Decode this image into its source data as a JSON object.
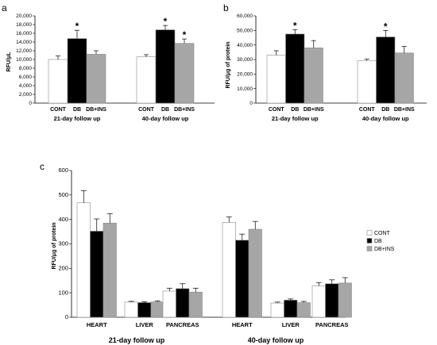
{
  "colors": {
    "CONT": "#ffffff",
    "DB": "#000000",
    "DB+INS": "#a6a6a6",
    "axis": "#000000",
    "errorbar": "#000000"
  },
  "chart_data": [
    {
      "panel": "a",
      "type": "bar",
      "ylabel": "RFU/μL",
      "ylim": [
        0,
        20000
      ],
      "yticks": [
        "0",
        "2,000",
        "4,000",
        "6,000",
        "8,000",
        "10,000",
        "12,000",
        "14,000",
        "16,000",
        "18,000",
        "20,000"
      ],
      "ytick_values": [
        0,
        2000,
        4000,
        6000,
        8000,
        10000,
        12000,
        14000,
        16000,
        18000,
        20000
      ],
      "groups": [
        {
          "label": "21-day follow up",
          "categories": [
            "CONT",
            "DB",
            "DB+INS"
          ],
          "values": [
            10000,
            14800,
            11200
          ],
          "errors": [
            800,
            1900,
            800
          ],
          "significance": [
            "",
            "*",
            ""
          ]
        },
        {
          "label": "40-day follow up",
          "categories": [
            "CONT",
            "DB",
            "DB+INS"
          ],
          "values": [
            10600,
            16800,
            13700
          ],
          "errors": [
            500,
            1000,
            1000
          ],
          "significance": [
            "",
            "*",
            "*"
          ]
        }
      ],
      "grid": false
    },
    {
      "panel": "b",
      "type": "bar",
      "ylabel": "RFU/μg of protein",
      "ylim": [
        0,
        60000
      ],
      "yticks": [
        "0",
        "10,000",
        "20,000",
        "30,000",
        "40,000",
        "50,000",
        "60,000"
      ],
      "ytick_values": [
        0,
        10000,
        20000,
        30000,
        40000,
        50000,
        60000
      ],
      "groups": [
        {
          "label": "21-day follow up",
          "categories": [
            "CONT",
            "DB",
            "DB+INS"
          ],
          "values": [
            33000,
            47500,
            38000
          ],
          "errors": [
            3000,
            3000,
            5000
          ],
          "significance": [
            "",
            "*",
            ""
          ]
        },
        {
          "label": "40-day follow up",
          "categories": [
            "CONT",
            "DB",
            "DB+INS"
          ],
          "values": [
            29200,
            45500,
            34500
          ],
          "errors": [
            1000,
            4500,
            4500
          ],
          "significance": [
            "",
            "*",
            ""
          ]
        }
      ],
      "grid": false
    },
    {
      "panel": "c",
      "type": "bar",
      "ylabel": "RFU/μg of protein",
      "ylim": [
        0,
        600
      ],
      "yticks": [
        "0",
        "100",
        "200",
        "300",
        "400",
        "500",
        "600"
      ],
      "ytick_values": [
        0,
        100,
        200,
        300,
        400,
        500,
        600
      ],
      "series": [
        {
          "name": "CONT",
          "values": [
            468,
            62,
            107,
            388,
            58,
            128
          ],
          "errors": [
            50,
            3,
            12,
            22,
            4,
            14
          ]
        },
        {
          "name": "DB",
          "values": [
            352,
            60,
            117,
            315,
            70,
            137
          ],
          "errors": [
            50,
            4,
            20,
            25,
            5,
            16
          ]
        },
        {
          "name": "DB+INS",
          "values": [
            385,
            63,
            103,
            360,
            60,
            140
          ],
          "errors": [
            38,
            4,
            16,
            32,
            5,
            22
          ]
        }
      ],
      "groups": [
        {
          "label": "21-day follow up",
          "categories": [
            "HEART",
            "LIVER",
            "PANCREAS"
          ]
        },
        {
          "label": "40-day follow up",
          "categories": [
            "HEART",
            "LIVER",
            "PANCREAS"
          ]
        }
      ],
      "legend": [
        "CONT",
        "DB",
        "DB+INS"
      ],
      "legend_position": "right",
      "grid": false
    }
  ]
}
